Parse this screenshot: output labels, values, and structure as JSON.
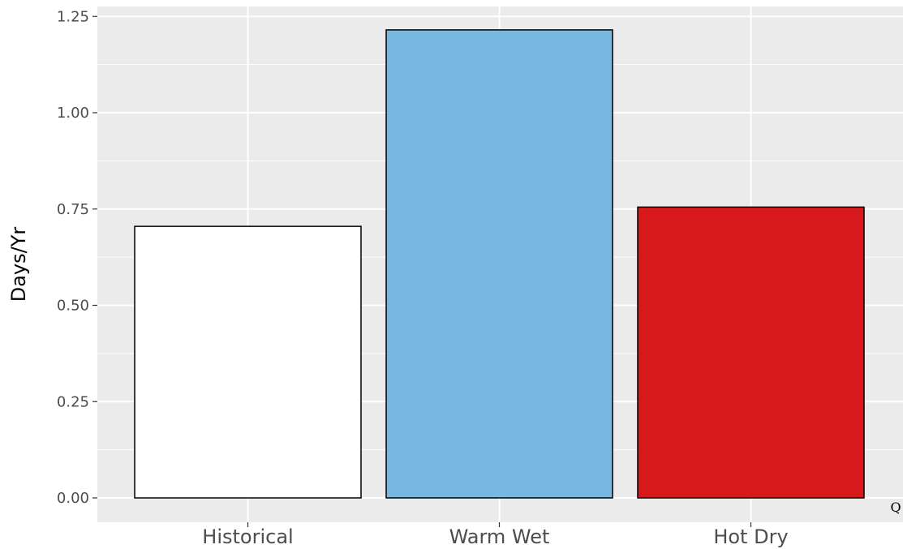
{
  "chart_data": {
    "type": "bar",
    "categories": [
      "Historical",
      "Warm Wet",
      "Hot Dry"
    ],
    "values": [
      0.705,
      1.215,
      0.755
    ],
    "colors": [
      "#ffffff",
      "#78b7e1",
      "#d7191c"
    ],
    "bar_outline": "#000000",
    "panel_background": "#ebebeb",
    "grid_color": "#ffffff",
    "title": "",
    "xlabel": "",
    "ylabel": "Days/Yr",
    "ylim": [
      -0.06,
      1.27
    ],
    "yticks": [
      0.0,
      0.25,
      0.5,
      0.75,
      1.0,
      1.25
    ],
    "ytick_labels": [
      "0.00",
      "0.25",
      "0.50",
      "0.75",
      "1.00",
      "1.25"
    ],
    "grid": true,
    "legend": "none",
    "annotation": "Q"
  }
}
